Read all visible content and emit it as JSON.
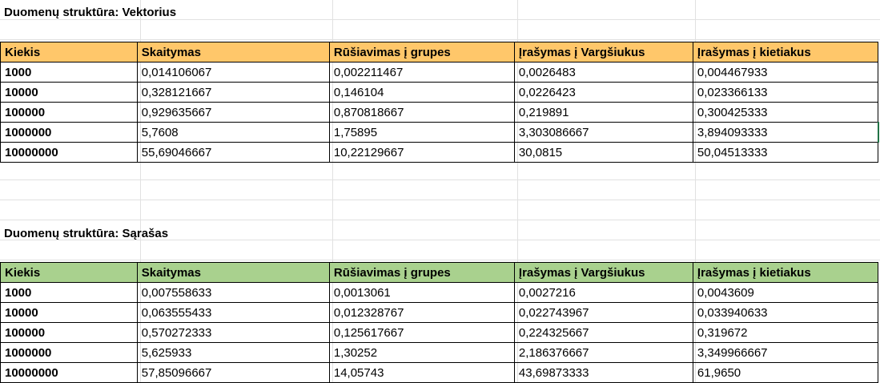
{
  "sheet": {
    "colors": {
      "vector_header": "#ffc76a",
      "list_header": "#a9d18e",
      "selection": "#217346"
    },
    "sections": [
      {
        "title": "Duomenų struktūra: Vektorius",
        "headers": [
          "Kiekis",
          "Skaitymas",
          "Rūšiavimas į grupes",
          "Įrašymas į Vargšiukus",
          "Įrašymas į kietiakus"
        ],
        "rows": [
          [
            "1000",
            "0,014106067",
            "0,002211467",
            "0,0026483",
            "0,004467933"
          ],
          [
            "10000",
            "0,328121667",
            "0,146104",
            "0,0226423",
            "0,023366133"
          ],
          [
            "100000",
            "0,929635667",
            "0,870818667",
            "0,219891",
            "0,300425333"
          ],
          [
            "1000000",
            "5,7608",
            "1,75895",
            "3,303086667",
            "3,894093333"
          ],
          [
            "10000000",
            "55,69046667",
            "10,22129667",
            "30,0815",
            "50,04513333"
          ]
        ]
      },
      {
        "title": "Duomenų struktūra: Sąrašas",
        "headers": [
          "Kiekis",
          "Skaitymas",
          "Rūšiavimas į grupes",
          "Įrašymas į Vargšiukus",
          "Įrašymas į kietiakus"
        ],
        "rows": [
          [
            "1000",
            "0,007558633",
            "0,0013061",
            "0,0027216",
            "0,0043609"
          ],
          [
            "10000",
            "0,063555433",
            "0,012328767",
            "0,022743967",
            "0,033940633"
          ],
          [
            "100000",
            "0,570272333",
            "0,125617667",
            "0,224325667",
            "0,319672"
          ],
          [
            "1000000",
            "5,625933",
            "1,30252",
            "2,186376667",
            "3,349966667"
          ],
          [
            "10000000",
            "57,85096667",
            "14,05743",
            "43,69873333",
            "61,9650"
          ]
        ]
      }
    ]
  }
}
